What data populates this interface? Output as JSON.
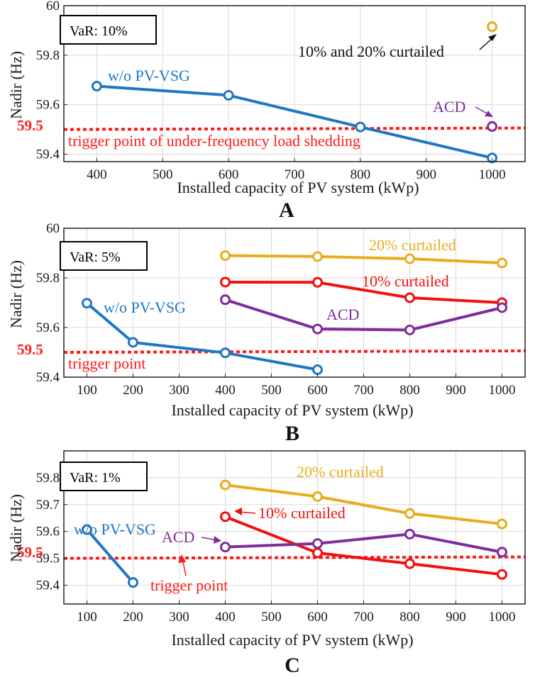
{
  "colors": {
    "blue": "#1f77c4",
    "yellow": "#e8ac1c",
    "red": "#f20f0f",
    "purple": "#7f2d9b",
    "threshold": "#ff1a1a",
    "grid": "#d9d9d9"
  },
  "chart_data": [
    {
      "type": "line",
      "panel": "A",
      "var_label": "VaR: 10%",
      "xlabel": "Installed capacity of PV system (kWp)",
      "ylabel": "Nadir (Hz)",
      "xlim": [
        350,
        1050
      ],
      "ylim": [
        59.37,
        60
      ],
      "xticks": [
        400,
        500,
        600,
        700,
        800,
        900,
        1000
      ],
      "yticks": [
        59.4,
        59.6,
        59.8,
        60
      ],
      "threshold": {
        "value": 59.5,
        "label": "59.5",
        "text": "trigger point of under-frequency load shedding"
      },
      "series": [
        {
          "name": "w/o PV-VSG",
          "color": "blue",
          "x": [
            400,
            600,
            800,
            1000
          ],
          "y": [
            59.675,
            59.638,
            59.51,
            59.385
          ]
        },
        {
          "name": "10% and 20% curtailed",
          "color": "yellow",
          "x": [
            1000
          ],
          "y": [
            59.915
          ]
        },
        {
          "name": "ACD",
          "color": "purple",
          "x": [
            1000
          ],
          "y": [
            59.512
          ]
        }
      ]
    },
    {
      "type": "line",
      "panel": "B",
      "var_label": "VaR: 5%",
      "xlabel": "Installed capacity of PV system (kWp)",
      "ylabel": "Nadir (Hz)",
      "xlim": [
        50,
        1050
      ],
      "ylim": [
        59.4,
        60
      ],
      "xticks": [
        100,
        200,
        300,
        400,
        500,
        600,
        700,
        800,
        900,
        1000
      ],
      "yticks": [
        59.4,
        59.6,
        59.8,
        60
      ],
      "threshold": {
        "value": 59.5,
        "label": "59.5",
        "text": "trigger point"
      },
      "series": [
        {
          "name": "w/o PV-VSG",
          "color": "blue",
          "x": [
            100,
            200,
            400,
            600
          ],
          "y": [
            59.698,
            59.54,
            59.498,
            59.43
          ]
        },
        {
          "name": "20% curtailed",
          "color": "yellow",
          "x": [
            400,
            600,
            800,
            1000
          ],
          "y": [
            59.89,
            59.886,
            59.877,
            59.86
          ]
        },
        {
          "name": "10% curtailed",
          "color": "red",
          "x": [
            400,
            600,
            800,
            1000
          ],
          "y": [
            59.783,
            59.782,
            59.72,
            59.7
          ]
        },
        {
          "name": "ACD",
          "color": "purple",
          "x": [
            400,
            600,
            800,
            1000
          ],
          "y": [
            59.712,
            59.594,
            59.59,
            59.68
          ]
        }
      ]
    },
    {
      "type": "line",
      "panel": "C",
      "var_label": "VaR: 1%",
      "xlabel": "Installed capacity of PV system (kWp)",
      "ylabel": "Nadir (Hz)",
      "xlim": [
        50,
        1050
      ],
      "ylim": [
        59.33,
        59.9
      ],
      "xticks": [
        100,
        200,
        300,
        400,
        500,
        600,
        700,
        800,
        900,
        1000
      ],
      "yticks": [
        59.4,
        59.5,
        59.6,
        59.7,
        59.8
      ],
      "threshold": {
        "value": 59.5,
        "label": "59.5",
        "text": "trigger point"
      },
      "series": [
        {
          "name": "w/o PV-VSG",
          "color": "blue",
          "x": [
            100,
            200
          ],
          "y": [
            59.607,
            59.41
          ]
        },
        {
          "name": "20% curtailed",
          "color": "yellow",
          "x": [
            400,
            600,
            800,
            1000
          ],
          "y": [
            59.773,
            59.73,
            59.667,
            59.628
          ]
        },
        {
          "name": "10% curtailed",
          "color": "red",
          "x": [
            400,
            600,
            800,
            1000
          ],
          "y": [
            59.655,
            59.52,
            59.48,
            59.44
          ]
        },
        {
          "name": "ACD",
          "color": "purple",
          "x": [
            400,
            600,
            800,
            1000
          ],
          "y": [
            59.542,
            59.555,
            59.59,
            59.523
          ]
        }
      ]
    }
  ]
}
